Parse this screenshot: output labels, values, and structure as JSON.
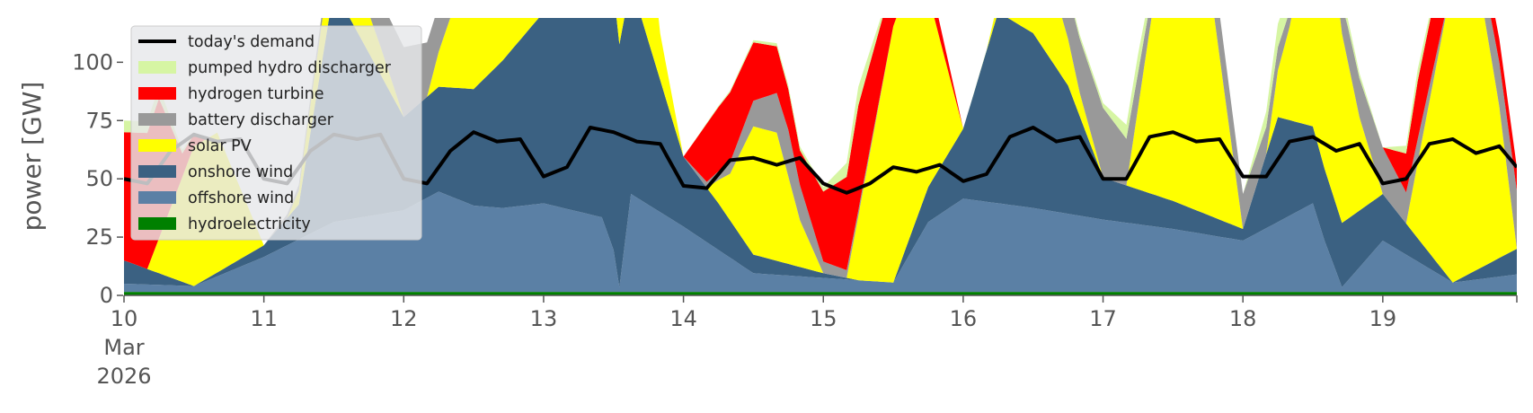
{
  "chart_data": {
    "type": "area",
    "title": "",
    "xlabel": "",
    "ylabel": "power [GW]",
    "ylim": [
      0,
      119
    ],
    "xlim": [
      "2026-03-10T00:00",
      "2026-03-19T23:00"
    ],
    "y_ticks": [
      0,
      25,
      50,
      75,
      100
    ],
    "y_tick_labels": [
      "0",
      "25",
      "50",
      "75",
      "100"
    ],
    "x_ticks": [
      "2026-03-10",
      "2026-03-11",
      "2026-03-12",
      "2026-03-13",
      "2026-03-14",
      "2026-03-15",
      "2026-03-16",
      "2026-03-17",
      "2026-03-18",
      "2026-03-19"
    ],
    "x_tick_labels": [
      "10",
      "11",
      "12",
      "13",
      "14",
      "15",
      "16",
      "17",
      "18",
      "19"
    ],
    "x_tick_sublabels": [
      "Mar",
      "2026"
    ],
    "grid": false,
    "legend": {
      "placement": "top-left",
      "entries": [
        "today's demand",
        "pumped hydro discharger",
        "hydrogen turbine",
        "battery discharger",
        "solar PV",
        "onshore wind",
        "offshore wind",
        "hydroelectricity"
      ]
    },
    "stack_order": [
      "hydroelectricity",
      "offshore wind",
      "onshore wind",
      "solar PV",
      "battery discharger",
      "hydrogen turbine",
      "pumped hydro discharger"
    ],
    "series": [
      {
        "name": "hydroelectricity",
        "color": "#008000",
        "x": [
          "2026-03-10T00:00",
          "2026-03-11T00:00",
          "2026-03-12T00:00",
          "2026-03-13T00:00",
          "2026-03-14T00:00",
          "2026-03-15T00:00",
          "2026-03-16T00:00",
          "2026-03-17T00:00",
          "2026-03-18T00:00",
          "2026-03-19T00:00",
          "2026-03-19T23:00"
        ],
        "values": [
          1.5,
          1.5,
          1.5,
          1.5,
          1.5,
          1.5,
          1.5,
          1.5,
          1.5,
          1.5,
          1.5
        ]
      },
      {
        "name": "offshore wind",
        "color": "#5b80a5",
        "x": [
          "2026-03-10T00:00",
          "2026-03-10T12:00",
          "2026-03-11T00:00",
          "2026-03-11T12:00",
          "2026-03-12T00:00",
          "2026-03-12T06:00",
          "2026-03-12T12:00",
          "2026-03-12T17:00",
          "2026-03-13T00:00",
          "2026-03-13T10:00",
          "2026-03-13T12:00",
          "2026-03-13T13:00",
          "2026-03-13T15:00",
          "2026-03-14T00:00",
          "2026-03-14T12:00",
          "2026-03-15T00:00",
          "2026-03-15T06:00",
          "2026-03-15T12:00",
          "2026-03-15T18:00",
          "2026-03-16T00:00",
          "2026-03-16T12:00",
          "2026-03-17T00:00",
          "2026-03-17T12:00",
          "2026-03-18T00:00",
          "2026-03-18T12:00",
          "2026-03-18T14:00",
          "2026-03-18T17:00",
          "2026-03-19T00:00",
          "2026-03-19T12:00",
          "2026-03-19T23:00"
        ],
        "values": [
          3.5,
          2.5,
          15,
          30,
          35,
          43,
          37,
          36,
          38,
          32,
          18,
          2,
          42,
          28,
          8,
          6,
          5,
          4,
          30,
          40,
          36,
          31,
          27,
          22,
          38,
          22,
          2,
          22,
          4,
          7.5
        ]
      },
      {
        "name": "onshore wind",
        "color": "#3b6182",
        "x": [
          "2026-03-10T00:00",
          "2026-03-10T12:00",
          "2026-03-11T00:00",
          "2026-03-11T06:00",
          "2026-03-11T12:00",
          "2026-03-12T00:00",
          "2026-03-12T12:00",
          "2026-03-13T00:00",
          "2026-03-13T12:00",
          "2026-03-13T18:00",
          "2026-03-14T00:00",
          "2026-03-14T06:00",
          "2026-03-14T12:00",
          "2026-03-15T00:00",
          "2026-03-15T06:00",
          "2026-03-15T12:00",
          "2026-03-16T00:00",
          "2026-03-16T06:00",
          "2026-03-16T12:00",
          "2026-03-16T18:00",
          "2026-03-17T00:00",
          "2026-03-17T12:00",
          "2026-03-18T00:00",
          "2026-03-18T06:00",
          "2026-03-18T12:00",
          "2026-03-19T00:00",
          "2026-03-19T12:00",
          "2026-03-19T23:00"
        ],
        "values": [
          10,
          0,
          5,
          15,
          100,
          40,
          50,
          82,
          111,
          70,
          30,
          20,
          8,
          2,
          0,
          0,
          30,
          82,
          75,
          55,
          18,
          12,
          5,
          45,
          33,
          20,
          0,
          11
        ]
      },
      {
        "name": "solar PV",
        "color": "#ffff00",
        "x": [
          "2026-03-10T00:00",
          "2026-03-10T04:00",
          "2026-03-10T08:00",
          "2026-03-10T12:00",
          "2026-03-10T16:00",
          "2026-03-10T20:00",
          "2026-03-11T00:00",
          "2026-03-11T04:00",
          "2026-03-11T08:00",
          "2026-03-11T12:00",
          "2026-03-11T16:00",
          "2026-03-11T20:00",
          "2026-03-12T00:00",
          "2026-03-12T04:00",
          "2026-03-12T08:00",
          "2026-03-12T12:00",
          "2026-03-12T16:00",
          "2026-03-12T20:00",
          "2026-03-13T00:00",
          "2026-03-13T04:00",
          "2026-03-13T08:00",
          "2026-03-13T12:00",
          "2026-03-13T16:00",
          "2026-03-13T20:00",
          "2026-03-14T00:00",
          "2026-03-14T04:00",
          "2026-03-14T08:00",
          "2026-03-14T12:00",
          "2026-03-14T16:00",
          "2026-03-14T20:00",
          "2026-03-15T00:00",
          "2026-03-15T04:00",
          "2026-03-15T08:00",
          "2026-03-15T12:00",
          "2026-03-15T16:00",
          "2026-03-15T20:00",
          "2026-03-16T00:00",
          "2026-03-16T04:00",
          "2026-03-16T08:00",
          "2026-03-16T12:00",
          "2026-03-16T16:00",
          "2026-03-16T20:00",
          "2026-03-17T00:00",
          "2026-03-17T04:00",
          "2026-03-17T08:00",
          "2026-03-17T12:00",
          "2026-03-17T16:00",
          "2026-03-17T20:00",
          "2026-03-18T00:00",
          "2026-03-18T04:00",
          "2026-03-18T08:00",
          "2026-03-18T12:00",
          "2026-03-18T16:00",
          "2026-03-18T20:00",
          "2026-03-19T00:00",
          "2026-03-19T04:00",
          "2026-03-19T08:00",
          "2026-03-19T12:00",
          "2026-03-19T16:00",
          "2026-03-19T20:00",
          "2026-03-19T23:00"
        ],
        "values": [
          0,
          0,
          30,
          60,
          60,
          30,
          0,
          0,
          12,
          22,
          22,
          12,
          0,
          0,
          30,
          80,
          80,
          30,
          0,
          0,
          22,
          110,
          80,
          20,
          0,
          0,
          20,
          55,
          55,
          20,
          0,
          0,
          55,
          110,
          110,
          55,
          0,
          0,
          10,
          30,
          30,
          10,
          0,
          0,
          70,
          140,
          140,
          70,
          0,
          0,
          40,
          95,
          95,
          40,
          0,
          0,
          65,
          130,
          130,
          65,
          0
        ]
      },
      {
        "name": "battery discharger",
        "color": "#999999",
        "x": [
          "2026-03-10T00:00",
          "2026-03-10T20:00",
          "2026-03-11T00:00",
          "2026-03-11T12:00",
          "2026-03-11T18:00",
          "2026-03-12T00:00",
          "2026-03-12T12:00",
          "2026-03-13T00:00",
          "2026-03-13T12:00",
          "2026-03-14T00:00",
          "2026-03-14T08:00",
          "2026-03-14T18:00",
          "2026-03-15T00:00",
          "2026-03-15T12:00",
          "2026-03-16T00:00",
          "2026-03-16T12:00",
          "2026-03-16T18:00",
          "2026-03-17T00:00",
          "2026-03-17T12:00",
          "2026-03-17T18:00",
          "2026-03-18T00:00",
          "2026-03-18T06:00",
          "2026-03-18T12:00",
          "2026-03-18T18:00",
          "2026-03-19T00:00",
          "2026-03-19T06:00",
          "2026-03-19T12:00",
          "2026-03-19T18:00",
          "2026-03-19T23:00"
        ],
        "values": [
          0,
          0,
          0,
          5,
          15,
          30,
          10,
          0,
          0,
          0,
          5,
          20,
          5,
          0,
          0,
          0,
          20,
          30,
          0,
          20,
          15,
          10,
          0,
          15,
          20,
          10,
          0,
          15,
          25
        ]
      },
      {
        "name": "hydrogen turbine",
        "color": "#ff0000",
        "x": [
          "2026-03-10T00:00",
          "2026-03-10T06:00",
          "2026-03-10T10:00",
          "2026-03-10T14:00",
          "2026-03-10T20:00",
          "2026-03-11T00:00",
          "2026-03-12T00:00",
          "2026-03-13T00:00",
          "2026-03-14T00:00",
          "2026-03-14T04:00",
          "2026-03-14T08:00",
          "2026-03-14T16:00",
          "2026-03-14T20:00",
          "2026-03-15T00:00",
          "2026-03-15T06:00",
          "2026-03-15T12:00",
          "2026-03-16T00:00",
          "2026-03-17T00:00",
          "2026-03-17T12:00",
          "2026-03-18T00:00",
          "2026-03-19T00:00",
          "2026-03-19T06:00",
          "2026-03-19T12:00",
          "2026-03-19T18:00",
          "2026-03-19T23:00"
        ],
        "values": [
          55,
          60,
          10,
          0,
          0,
          0,
          0,
          0,
          0,
          25,
          30,
          20,
          15,
          30,
          45,
          20,
          0,
          0,
          0,
          0,
          0,
          25,
          30,
          10,
          10
        ]
      },
      {
        "name": "pumped hydro discharger",
        "color": "#d6f5a3",
        "x": [
          "2026-03-10T00:00",
          "2026-03-10T06:00",
          "2026-03-10T12:00",
          "2026-03-11T00:00",
          "2026-03-14T00:00",
          "2026-03-15T00:00",
          "2026-03-15T06:00",
          "2026-03-15T12:00",
          "2026-03-16T00:00",
          "2026-03-17T00:00",
          "2026-03-17T06:00",
          "2026-03-17T12:00",
          "2026-03-18T00:00",
          "2026-03-18T06:00",
          "2026-03-19T00:00",
          "2026-03-19T06:00",
          "2026-03-19T12:00",
          "2026-03-19T23:00"
        ],
        "values": [
          5,
          5,
          0,
          0,
          0,
          2,
          8,
          0,
          0,
          2,
          8,
          0,
          0,
          10,
          0,
          5,
          0,
          0
        ]
      }
    ],
    "line_series": {
      "name": "today's demand",
      "color": "#000000",
      "x": [
        "2026-03-10T00:00",
        "2026-03-10T04:00",
        "2026-03-10T08:00",
        "2026-03-10T12:00",
        "2026-03-10T16:00",
        "2026-03-10T20:00",
        "2026-03-11T00:00",
        "2026-03-11T04:00",
        "2026-03-11T08:00",
        "2026-03-11T12:00",
        "2026-03-11T16:00",
        "2026-03-11T20:00",
        "2026-03-12T00:00",
        "2026-03-12T04:00",
        "2026-03-12T08:00",
        "2026-03-12T12:00",
        "2026-03-12T16:00",
        "2026-03-12T20:00",
        "2026-03-13T00:00",
        "2026-03-13T04:00",
        "2026-03-13T08:00",
        "2026-03-13T12:00",
        "2026-03-13T16:00",
        "2026-03-13T20:00",
        "2026-03-14T00:00",
        "2026-03-14T04:00",
        "2026-03-14T08:00",
        "2026-03-14T12:00",
        "2026-03-14T16:00",
        "2026-03-14T20:00",
        "2026-03-15T00:00",
        "2026-03-15T04:00",
        "2026-03-15T08:00",
        "2026-03-15T12:00",
        "2026-03-15T16:00",
        "2026-03-15T20:00",
        "2026-03-16T00:00",
        "2026-03-16T04:00",
        "2026-03-16T08:00",
        "2026-03-16T12:00",
        "2026-03-16T16:00",
        "2026-03-16T20:00",
        "2026-03-17T00:00",
        "2026-03-17T04:00",
        "2026-03-17T08:00",
        "2026-03-17T12:00",
        "2026-03-17T16:00",
        "2026-03-17T20:00",
        "2026-03-18T00:00",
        "2026-03-18T04:00",
        "2026-03-18T08:00",
        "2026-03-18T12:00",
        "2026-03-18T16:00",
        "2026-03-18T20:00",
        "2026-03-19T00:00",
        "2026-03-19T04:00",
        "2026-03-19T08:00",
        "2026-03-19T12:00",
        "2026-03-19T16:00",
        "2026-03-19T20:00",
        "2026-03-19T23:00"
      ],
      "values": [
        50,
        48,
        62,
        69,
        66,
        67,
        50,
        48,
        62,
        69,
        67,
        69,
        50,
        48,
        62,
        70,
        66,
        67,
        51,
        55,
        72,
        70,
        66,
        65,
        47,
        46,
        58,
        59,
        56,
        59,
        48,
        44,
        48,
        55,
        53,
        56,
        49,
        52,
        68,
        72,
        66,
        68,
        50,
        50,
        68,
        70,
        66,
        67,
        51,
        51,
        66,
        68,
        62,
        65,
        48,
        50,
        65,
        67,
        61,
        64,
        55
      ]
    }
  }
}
